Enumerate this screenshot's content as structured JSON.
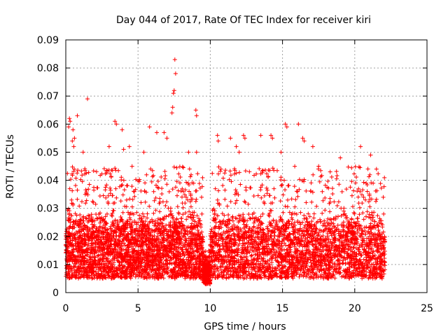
{
  "chart_data": {
    "type": "scatter",
    "title": "Day 044 of 2017, Rate Of TEC Index for receiver kiri",
    "xlabel": "GPS time / hours",
    "ylabel": "ROTI / TECUs",
    "xlim": [
      0,
      25
    ],
    "ylim": [
      0,
      0.09
    ],
    "xticks": [
      0,
      5,
      10,
      15,
      20,
      25
    ],
    "xtick_labels": [
      "0",
      "5",
      "10",
      "15",
      "20",
      "25"
    ],
    "yticks": [
      0,
      0.01,
      0.02,
      0.03,
      0.04,
      0.05,
      0.06,
      0.07,
      0.08,
      0.09
    ],
    "ytick_labels": [
      "0",
      "0.01",
      "0.02",
      "0.03",
      "0.04",
      "0.05",
      "0.06",
      "0.07",
      "0.08",
      "0.09"
    ],
    "grid": true,
    "marker": "+",
    "color": "#ff0000",
    "series": [
      {
        "name": "ROTI",
        "segments": [
          {
            "x_start": 0.0,
            "x_end": 9.5,
            "typical_low": 0.005,
            "typical_high": 0.03,
            "peak_max": 0.045
          },
          {
            "x_start": 9.5,
            "x_end": 10.0,
            "typical_low": 0.003,
            "typical_high": 0.012,
            "peak_max": 0.015
          },
          {
            "x_start": 10.0,
            "x_end": 22.1,
            "typical_low": 0.005,
            "typical_high": 0.03,
            "peak_max": 0.045
          }
        ],
        "outliers": [
          {
            "x": 7.55,
            "y": 0.083
          },
          {
            "x": 7.6,
            "y": 0.078
          },
          {
            "x": 7.5,
            "y": 0.072
          },
          {
            "x": 7.45,
            "y": 0.071
          },
          {
            "x": 7.4,
            "y": 0.066
          },
          {
            "x": 7.35,
            "y": 0.064
          },
          {
            "x": 1.5,
            "y": 0.069
          },
          {
            "x": 9.0,
            "y": 0.065
          },
          {
            "x": 9.05,
            "y": 0.063
          },
          {
            "x": 0.25,
            "y": 0.062
          },
          {
            "x": 0.3,
            "y": 0.061
          },
          {
            "x": 0.2,
            "y": 0.059
          },
          {
            "x": 0.8,
            "y": 0.063
          },
          {
            "x": 0.5,
            "y": 0.058
          },
          {
            "x": 0.6,
            "y": 0.055
          },
          {
            "x": 0.55,
            "y": 0.052
          },
          {
            "x": 0.45,
            "y": 0.054
          },
          {
            "x": 1.2,
            "y": 0.05
          },
          {
            "x": 3.4,
            "y": 0.061
          },
          {
            "x": 3.5,
            "y": 0.06
          },
          {
            "x": 3.9,
            "y": 0.058
          },
          {
            "x": 5.8,
            "y": 0.059
          },
          {
            "x": 6.3,
            "y": 0.057
          },
          {
            "x": 6.8,
            "y": 0.057
          },
          {
            "x": 7.0,
            "y": 0.055
          },
          {
            "x": 4.4,
            "y": 0.052
          },
          {
            "x": 4.0,
            "y": 0.051
          },
          {
            "x": 3.0,
            "y": 0.052
          },
          {
            "x": 5.4,
            "y": 0.05
          },
          {
            "x": 8.5,
            "y": 0.05
          },
          {
            "x": 9.05,
            "y": 0.05
          },
          {
            "x": 10.5,
            "y": 0.056
          },
          {
            "x": 10.55,
            "y": 0.054
          },
          {
            "x": 11.4,
            "y": 0.055
          },
          {
            "x": 12.3,
            "y": 0.056
          },
          {
            "x": 12.4,
            "y": 0.055
          },
          {
            "x": 13.5,
            "y": 0.056
          },
          {
            "x": 14.2,
            "y": 0.056
          },
          {
            "x": 14.3,
            "y": 0.055
          },
          {
            "x": 15.2,
            "y": 0.06
          },
          {
            "x": 15.3,
            "y": 0.059
          },
          {
            "x": 16.1,
            "y": 0.06
          },
          {
            "x": 16.5,
            "y": 0.054
          },
          {
            "x": 16.4,
            "y": 0.055
          },
          {
            "x": 17.1,
            "y": 0.052
          },
          {
            "x": 18.3,
            "y": 0.043
          },
          {
            "x": 19.0,
            "y": 0.048
          },
          {
            "x": 20.4,
            "y": 0.052
          },
          {
            "x": 21.1,
            "y": 0.049
          },
          {
            "x": 12.0,
            "y": 0.05
          },
          {
            "x": 11.8,
            "y": 0.052
          },
          {
            "x": 14.9,
            "y": 0.05
          },
          {
            "x": 17.5,
            "y": 0.045
          },
          {
            "x": 21.5,
            "y": 0.044
          }
        ]
      }
    ]
  }
}
